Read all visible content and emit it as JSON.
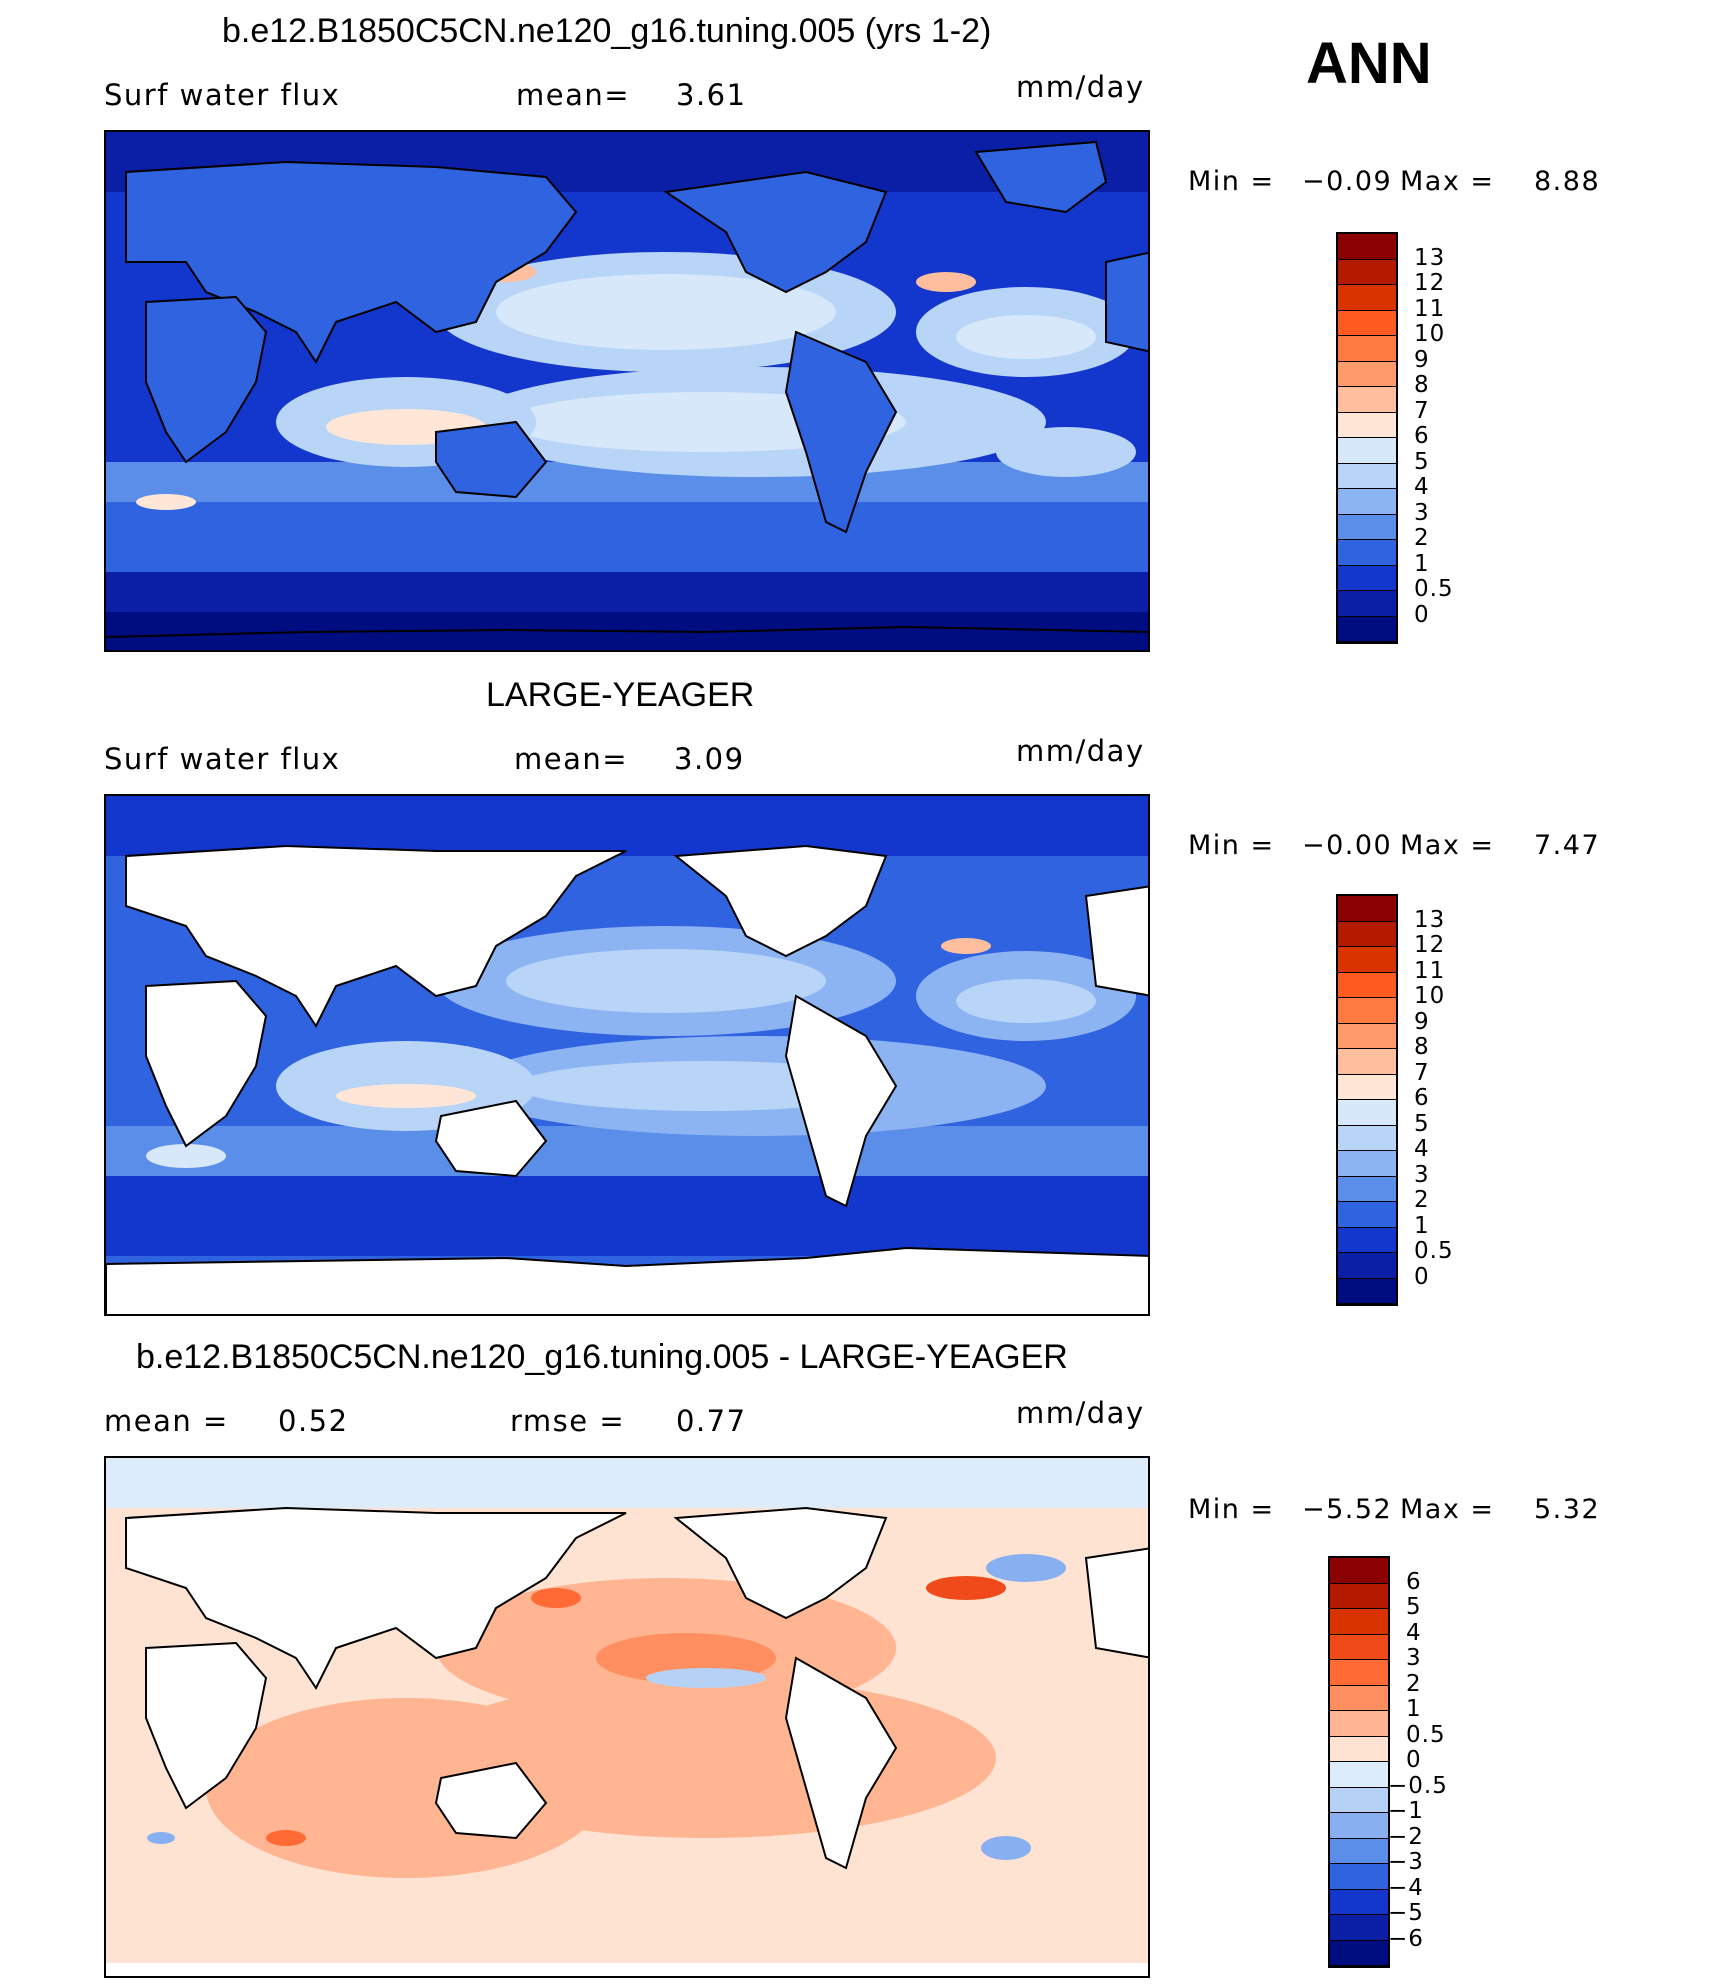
{
  "season": "ANN",
  "panels": [
    {
      "title": "b.e12.B1850C5CN.ne120_g16.tuning.005 (yrs 1-2)",
      "left_label": "Surf water flux",
      "mean_label": "mean=",
      "mean_value": "3.61",
      "units": "mm/day",
      "min_label": "Min =",
      "min_value": "−0.09",
      "max_label": "Max =",
      "max_value": "8.88",
      "colorbar_labels": [
        "13",
        "12",
        "11",
        "10",
        "9",
        "8",
        "7",
        "6",
        "5",
        "4",
        "3",
        "2",
        "1",
        "0.5",
        "0"
      ],
      "colorbar_colors": [
        "#8b0000",
        "#b31a00",
        "#d93300",
        "#ff5a1f",
        "#ff7a40",
        "#ff9a6a",
        "#ffbf9e",
        "#ffe6d6",
        "#d6e8fa",
        "#b8d4f7",
        "#8db4f2",
        "#5a8ee8",
        "#2f63e0",
        "#1336cc",
        "#0a1fa6",
        "#000d80"
      ]
    },
    {
      "title": "LARGE-YEAGER",
      "left_label": "Surf water flux",
      "mean_label": "mean=",
      "mean_value": "3.09",
      "units": "mm/day",
      "min_label": "Min =",
      "min_value": "−0.00",
      "max_label": "Max =",
      "max_value": "7.47",
      "colorbar_labels": [
        "13",
        "12",
        "11",
        "10",
        "9",
        "8",
        "7",
        "6",
        "5",
        "4",
        "3",
        "2",
        "1",
        "0.5",
        "0"
      ],
      "colorbar_colors": [
        "#8b0000",
        "#b31a00",
        "#d93300",
        "#ff5a1f",
        "#ff7a40",
        "#ff9a6a",
        "#ffbf9e",
        "#ffe6d6",
        "#d6e8fa",
        "#b8d4f7",
        "#8db4f2",
        "#5a8ee8",
        "#2f63e0",
        "#1336cc",
        "#0a1fa6",
        "#000d80"
      ]
    },
    {
      "title": "b.e12.B1850C5CN.ne120_g16.tuning.005 - LARGE-YEAGER",
      "left_label": "mean =",
      "left_value": "0.52",
      "mean_label": "rmse =",
      "mean_value": "0.77",
      "units": "mm/day",
      "min_label": "Min =",
      "min_value": "−5.52",
      "max_label": "Max =",
      "max_value": "5.32",
      "colorbar_labels": [
        "6",
        "5",
        "4",
        "3",
        "2",
        "1",
        "0.5",
        "0",
        "−0.5",
        "−1",
        "−2",
        "−3",
        "−4",
        "−5",
        "−6"
      ],
      "colorbar_colors": [
        "#8b0000",
        "#b31a00",
        "#d93300",
        "#f04a1a",
        "#ff6a35",
        "#ff8f60",
        "#ffb592",
        "#ffe3d2",
        "#dcecfb",
        "#b5d2f6",
        "#88b0f0",
        "#5a8ee8",
        "#2f63e0",
        "#1336cc",
        "#0a1fa6",
        "#000d80"
      ]
    }
  ]
}
